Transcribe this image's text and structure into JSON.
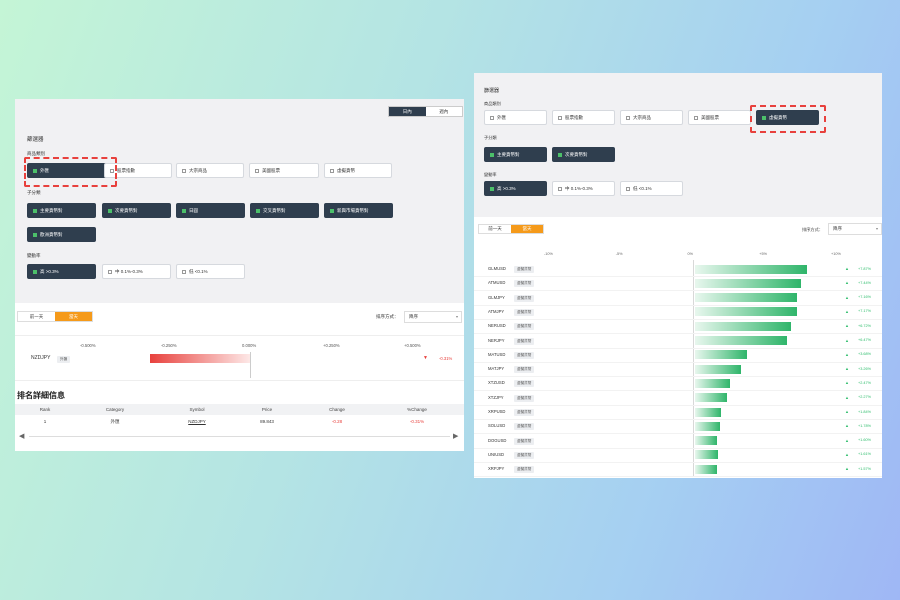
{
  "left": {
    "tabs": [
      "日內",
      "週內"
    ],
    "filter_title": "篩選器",
    "product_label": "商品類別",
    "products": [
      {
        "label": "外匯",
        "selected": true
      },
      {
        "label": "股票指數",
        "selected": false
      },
      {
        "label": "大宗商品",
        "selected": false
      },
      {
        "label": "美國股票",
        "selected": false
      },
      {
        "label": "虛擬貨幣",
        "selected": false
      }
    ],
    "sub_label": "子分類",
    "subs": [
      {
        "label": "主要貨幣對",
        "selected": true
      },
      {
        "label": "次要貨幣對",
        "selected": true
      },
      {
        "label": "日圓",
        "selected": true
      },
      {
        "label": "交叉貨幣對",
        "selected": true
      },
      {
        "label": "新興市場貨幣對",
        "selected": true
      },
      {
        "label": "歐洲貨幣對",
        "selected": true
      }
    ],
    "vol_label": "變動率",
    "vols": [
      {
        "label": "高 >0.3%",
        "selected": true
      },
      {
        "label": "中 0.1%-0.3%",
        "selected": false
      },
      {
        "label": "低 <0.1%",
        "selected": false
      }
    ],
    "toggle": [
      "前一天",
      "當天"
    ],
    "sort_label": "排序方式：",
    "sort_value": "降序",
    "axis_ticks": [
      "-0.500%",
      "-0.250%",
      "0.000%",
      "+0.250%",
      "+0.500%"
    ],
    "chart_data": {
      "type": "bar",
      "categories": [
        "NZDJPY"
      ],
      "tags": [
        "外匯"
      ],
      "values": [
        -0.31
      ],
      "value_labels": [
        "-0.31%"
      ],
      "xlim": [
        -0.5,
        0.5
      ],
      "colors": {
        "negative": "#e8413d"
      }
    },
    "detail_title": "排名詳細信息",
    "table": {
      "headers": [
        "Rank",
        "Category",
        "Symbol",
        "Price",
        "Change",
        "%Change"
      ],
      "rows": [
        [
          "1",
          "外匯",
          "NZDJPY",
          "89.843",
          "-0.28",
          "-0.31%"
        ]
      ]
    }
  },
  "right": {
    "filter_title": "篩選器",
    "product_label": "商品類別",
    "products": [
      {
        "label": "外匯",
        "selected": false
      },
      {
        "label": "股票指數",
        "selected": false
      },
      {
        "label": "大宗商品",
        "selected": false
      },
      {
        "label": "美國股票",
        "selected": false
      },
      {
        "label": "虛擬貨幣",
        "selected": true
      }
    ],
    "sub_label": "子分類",
    "subs": [
      {
        "label": "主要貨幣對",
        "selected": true
      },
      {
        "label": "次要貨幣對",
        "selected": true
      }
    ],
    "vol_label": "變動率",
    "vols": [
      {
        "label": "高 >0.3%",
        "selected": true
      },
      {
        "label": "中 0.1%-0.3%",
        "selected": false
      },
      {
        "label": "低 <0.1%",
        "selected": false
      }
    ],
    "toggle": [
      "前一天",
      "當天"
    ],
    "sort_label": "排序方式：",
    "sort_value": "降序",
    "axis_ticks": [
      "-10%",
      "-5%",
      "0%",
      "+5%",
      "+10%"
    ],
    "chart_data": {
      "type": "bar",
      "categories": [
        "GLMUSD",
        "ATMUSD",
        "GLMJPY",
        "ATMJPY",
        "NERUSD",
        "NERJPY",
        "MATUSD",
        "MATJPY",
        "XTZUSD",
        "XTZJPY",
        "XRPUSD",
        "SOLUSD",
        "DOGUSD",
        "UNIUSD",
        "XRPJPY"
      ],
      "tag": "虛擬貨幣",
      "values": [
        7.87,
        7.44,
        7.16,
        7.17,
        6.72,
        6.47,
        3.68,
        3.26,
        2.47,
        2.27,
        1.84,
        1.78,
        1.6,
        1.61,
        1.57
      ],
      "value_labels": [
        "+7.87%",
        "+7.44%",
        "+7.16%",
        "+7.17%",
        "+6.72%",
        "+6.47%",
        "+3.68%",
        "+3.26%",
        "+2.47%",
        "+2.27%",
        "+1.84%",
        "+1.78%",
        "+1.60%",
        "+1.61%",
        "+1.57%"
      ],
      "xlim": [
        -10,
        10
      ],
      "colors": {
        "positive": "#2fb56a"
      }
    }
  }
}
